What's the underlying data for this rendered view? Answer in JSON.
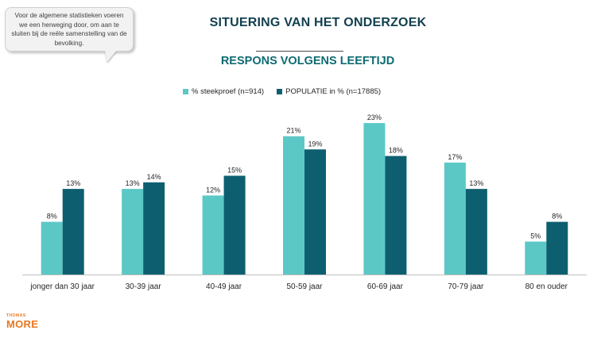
{
  "callout": {
    "text": "Voor de algemene statistieken voeren we een herweging door, om aan te sluiten bij de reële samenstelling van de bevolking."
  },
  "header": {
    "title": "SITUERING VAN HET ONDERZOEK",
    "subtitle": "RESPONS VOLGENS LEEFTIJD"
  },
  "logo": {
    "top": "THOMAS",
    "main": "MORE"
  },
  "colors": {
    "steekproef": "#5bc8c6",
    "populatie": "#0d5f70",
    "axis": "#bfbfbf"
  },
  "chart_data": {
    "type": "bar",
    "title": "RESPONS VOLGENS LEEFTIJD",
    "xlabel": "",
    "ylabel": "",
    "ylim": [
      0,
      25
    ],
    "grid": false,
    "legend_position": "top",
    "categories": [
      "jonger dan 30 jaar",
      "30-39 jaar",
      "40-49 jaar",
      "50-59 jaar",
      "60-69 jaar",
      "70-79 jaar",
      "80 en ouder"
    ],
    "series": [
      {
        "name": "% steekproef (n=914)",
        "values": [
          8,
          13,
          12,
          21,
          23,
          17,
          5
        ],
        "labels": [
          "8%",
          "13%",
          "12%",
          "21%",
          "23%",
          "17%",
          "5%"
        ]
      },
      {
        "name": "POPULATIE in % (n=17885)",
        "values": [
          13,
          14,
          15,
          19,
          18,
          13,
          8
        ],
        "labels": [
          "13%",
          "14%",
          "15%",
          "19%",
          "18%",
          "13%",
          "8%"
        ]
      }
    ]
  }
}
